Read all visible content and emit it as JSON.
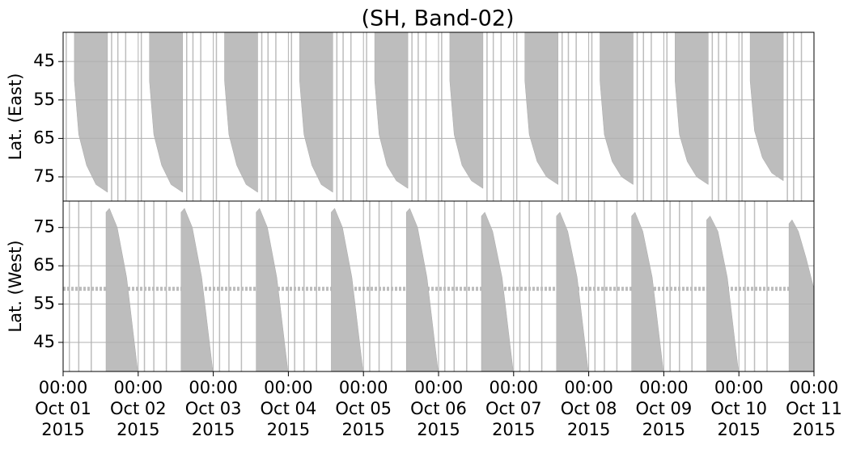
{
  "chart_data": {
    "type": "area",
    "title": "(SH, Band-02)",
    "xlim": [
      0,
      240
    ],
    "xticks": [
      {
        "value": 0,
        "label": "00:00\nOct 01\n2015"
      },
      {
        "value": 24,
        "label": "00:00\nOct 02\n2015"
      },
      {
        "value": 48,
        "label": "00:00\nOct 03\n2015"
      },
      {
        "value": 72,
        "label": "00:00\nOct 04\n2015"
      },
      {
        "value": 96,
        "label": "00:00\nOct 05\n2015"
      },
      {
        "value": 120,
        "label": "00:00\nOct 06\n2015"
      },
      {
        "value": 144,
        "label": "00:00\nOct 07\n2015"
      },
      {
        "value": 168,
        "label": "00:00\nOct 08\n2015"
      },
      {
        "value": 192,
        "label": "00:00\nOct 09\n2015"
      },
      {
        "value": 216,
        "label": "00:00\nOct 10\n2015"
      },
      {
        "value": 240,
        "label": "00:00\nOct 11\n2015"
      }
    ],
    "color": "#bdbdbd",
    "grid": true,
    "panels": [
      {
        "ylabel": "Lat. (East)",
        "ylim": [
          81.3,
          37.4
        ],
        "yticks": [
          45,
          55,
          65,
          75
        ],
        "swaths": [
          {
            "x": [
              3.6,
              5,
              7.5,
              10.5,
              14.2
            ],
            "values": [
              50,
              64,
              72,
              77,
              79
            ]
          },
          {
            "x": [
              27.6,
              29,
              31.5,
              34.5,
              38.2
            ],
            "values": [
              50,
              64,
              72,
              77,
              79
            ]
          },
          {
            "x": [
              51.6,
              53,
              55.5,
              58.5,
              62.2
            ],
            "values": [
              50,
              64,
              72,
              77,
              79
            ]
          },
          {
            "x": [
              75.6,
              77,
              79.5,
              82.5,
              86.2
            ],
            "values": [
              50,
              64,
              72,
              77,
              79
            ]
          },
          {
            "x": [
              99.6,
              101,
              103.5,
              106.5,
              110.2
            ],
            "values": [
              50,
              64,
              72,
              76,
              78
            ]
          },
          {
            "x": [
              123.6,
              125,
              127.5,
              130.5,
              134.2
            ],
            "values": [
              50,
              64,
              72,
              76,
              78
            ]
          },
          {
            "x": [
              147.6,
              149,
              151.5,
              154.5,
              158.2
            ],
            "values": [
              50,
              64,
              71,
              75,
              77
            ]
          },
          {
            "x": [
              171.6,
              173,
              175.5,
              178.5,
              182.2
            ],
            "values": [
              50,
              64,
              71,
              75,
              77
            ]
          },
          {
            "x": [
              195.6,
              197,
              199.5,
              202.5,
              206.2
            ],
            "values": [
              50,
              64,
              71,
              75,
              77
            ]
          },
          {
            "x": [
              219.6,
              221,
              223.5,
              226.5,
              230.2
            ],
            "values": [
              50,
              63,
              70,
              74,
              76
            ]
          }
        ],
        "lines_x": [
          1,
          15.5,
          17.5,
          20,
          25,
          39.5,
          41.5,
          44,
          49,
          63.5,
          65.5,
          68,
          73,
          87.5,
          89.5,
          92,
          97,
          111.5,
          113.5,
          116,
          121,
          135.5,
          137.5,
          140,
          145,
          159.5,
          161.5,
          164,
          169,
          183.5,
          185.5,
          188,
          193,
          207.5,
          209.5,
          212,
          217,
          231.5,
          233.5,
          236
        ]
      },
      {
        "ylabel": "Lat. (West)",
        "ylim": [
          37.4,
          81.9
        ],
        "yticks": [
          45,
          55,
          65,
          75
        ],
        "swaths": [
          {
            "x": [
              13.7,
              14.8,
              17.3,
              20.3,
              23.8
            ],
            "values": [
              79,
              80,
              75,
              62,
              38
            ]
          },
          {
            "x": [
              37.7,
              38.8,
              41.3,
              44.3,
              47.8
            ],
            "values": [
              79,
              80,
              75,
              62,
              38
            ]
          },
          {
            "x": [
              61.7,
              62.8,
              65.3,
              68.3,
              71.8
            ],
            "values": [
              79,
              80,
              75,
              62,
              38
            ]
          },
          {
            "x": [
              85.7,
              86.8,
              89.3,
              92.3,
              95.8
            ],
            "values": [
              79,
              80,
              75,
              62,
              38
            ]
          },
          {
            "x": [
              109.7,
              110.8,
              113.3,
              116.3,
              119.8
            ],
            "values": [
              79,
              80,
              75,
              62,
              38
            ]
          },
          {
            "x": [
              133.7,
              134.8,
              137.3,
              140.3,
              143.8
            ],
            "values": [
              78,
              79,
              74,
              62,
              38
            ]
          },
          {
            "x": [
              157.7,
              158.8,
              161.3,
              164.3,
              167.8
            ],
            "values": [
              78,
              79,
              74,
              62,
              38
            ]
          },
          {
            "x": [
              181.7,
              182.8,
              185.3,
              188.3,
              191.8
            ],
            "values": [
              78,
              79,
              74,
              62,
              38
            ]
          },
          {
            "x": [
              205.7,
              206.8,
              209.3,
              212.3,
              215.8
            ],
            "values": [
              77,
              78,
              74,
              62,
              38
            ]
          },
          {
            "x": [
              232,
              233,
              235,
              237.5,
              240
            ],
            "values": [
              76,
              77,
              74,
              67,
              59
            ]
          }
        ],
        "lines_x": [
          2,
          5,
          9,
          26,
          29,
          33,
          50,
          53,
          57,
          74,
          77,
          81,
          98,
          101,
          105,
          122,
          125,
          129,
          146,
          149,
          153,
          170,
          173,
          177,
          194,
          197,
          201,
          218,
          221,
          225
        ],
        "band": 59
      }
    ]
  }
}
